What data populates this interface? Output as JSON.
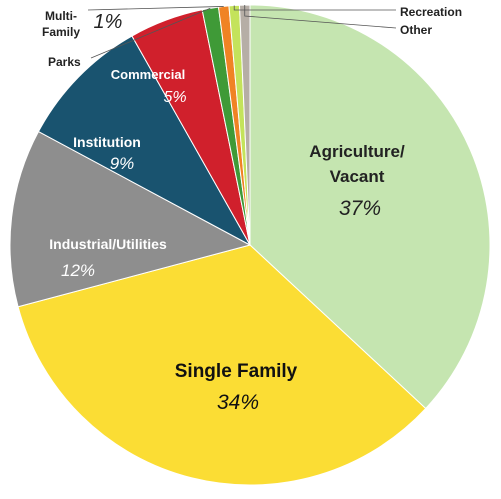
{
  "chart_data": {
    "type": "pie",
    "start_angle_deg": 0,
    "direction": "clockwise",
    "slices": [
      {
        "key": "agri",
        "label_lines": [
          "Agriculture/",
          "Vacant"
        ],
        "value": 37,
        "pct_label": "37%",
        "color": "#c5e5b0"
      },
      {
        "key": "single",
        "label_lines": [
          "Single Family"
        ],
        "value": 34,
        "pct_label": "34%",
        "color": "#fbdd34"
      },
      {
        "key": "indus",
        "label_lines": [
          "Industrial/Utilities"
        ],
        "value": 12,
        "pct_label": "12%",
        "color": "#8e8e8e"
      },
      {
        "key": "inst",
        "label_lines": [
          "Institution"
        ],
        "value": 9,
        "pct_label": "9%",
        "color": "#19536f"
      },
      {
        "key": "comm",
        "label_lines": [
          "Commercial"
        ],
        "value": 5,
        "pct_label": "5%",
        "color": "#d0202c"
      },
      {
        "key": "parks",
        "label_lines": [
          "Parks"
        ],
        "value": 1.1,
        "pct_label": "",
        "color": "#3f9a37"
      },
      {
        "key": "multi",
        "label_lines": [
          "Multi-",
          "Family"
        ],
        "value": 0.7,
        "pct_label": "1%",
        "color": "#f08324"
      },
      {
        "key": "rec",
        "label_lines": [
          "Recreation"
        ],
        "value": 0.7,
        "pct_label": "",
        "color": "#c4e35b"
      },
      {
        "key": "other",
        "label_lines": [
          "Other"
        ],
        "value": 0.7,
        "pct_label": "",
        "color": "#b6aea6"
      }
    ]
  }
}
